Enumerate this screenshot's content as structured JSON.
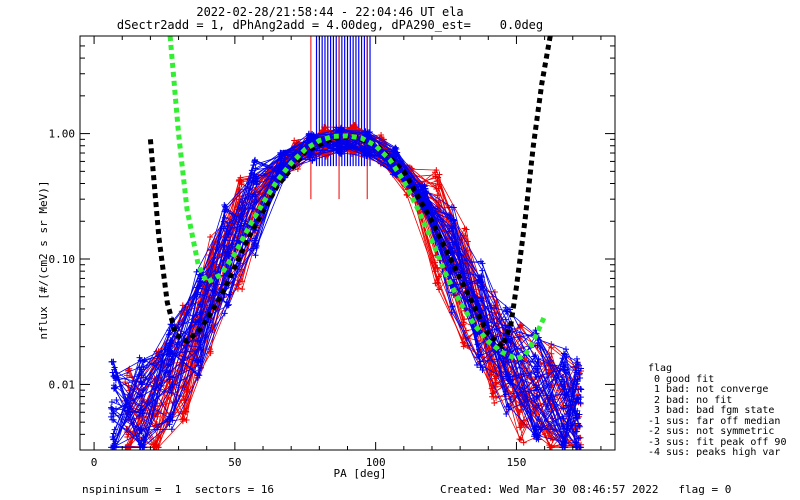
{
  "chart_data": {
    "type": "line",
    "title": "2022-02-28/21:58:44 - 22:04:46 UT ela",
    "subtitle": "dSectr2add = 1, dPhAng2add = 4.00deg, dPA290_est=    0.0deg",
    "xlabel": "PA [deg]",
    "ylabel": "nflux [#/(cm2 s sr MeV)]",
    "xlim": [
      -5,
      185
    ],
    "ylim": [
      0.003,
      6.0
    ],
    "yscale": "log",
    "x_ticks": [
      0,
      50,
      100,
      150
    ],
    "y_ticks": [
      0.01,
      0.1,
      1.0
    ],
    "y_tick_labels": [
      "0.01",
      "0.10",
      "1.00"
    ],
    "grid": false,
    "series": [
      {
        "color": "#000000",
        "style": "dashed",
        "x": [
          20,
          23,
          26,
          29,
          33,
          38,
          45,
          55,
          65,
          75,
          85,
          92,
          100,
          110,
          120,
          130,
          140,
          145,
          148,
          150,
          153,
          156,
          159,
          162
        ],
        "y": [
          0.9,
          0.15,
          0.045,
          0.025,
          0.022,
          0.028,
          0.05,
          0.15,
          0.38,
          0.72,
          0.92,
          0.95,
          0.82,
          0.5,
          0.2,
          0.07,
          0.025,
          0.02,
          0.03,
          0.06,
          0.2,
          0.8,
          2.5,
          6.0
        ]
      },
      {
        "color": "#33ee33",
        "style": "dashed",
        "x": [
          27,
          30,
          33,
          37,
          40,
          45,
          50,
          55,
          60,
          65,
          70,
          75,
          80,
          85,
          90,
          95,
          100,
          105,
          110,
          115,
          120,
          125,
          130,
          135,
          140,
          145,
          150,
          153,
          156,
          160
        ],
        "y": [
          6.0,
          1.0,
          0.25,
          0.09,
          0.065,
          0.075,
          0.11,
          0.18,
          0.28,
          0.42,
          0.58,
          0.75,
          0.88,
          0.95,
          0.96,
          0.92,
          0.8,
          0.62,
          0.42,
          0.25,
          0.14,
          0.075,
          0.045,
          0.03,
          0.022,
          0.018,
          0.016,
          0.017,
          0.022,
          0.035
        ]
      }
    ],
    "traces": {
      "blue": {
        "color": "#0000ee",
        "count": 45,
        "x": [
          7,
          17,
          27,
          37,
          47,
          57,
          67,
          77,
          87,
          97,
          107,
          117,
          127,
          137,
          147,
          157,
          167,
          172
        ],
        "y": [
          0.006,
          0.006,
          0.012,
          0.03,
          0.1,
          0.28,
          0.55,
          0.78,
          0.88,
          0.85,
          0.6,
          0.3,
          0.1,
          0.035,
          0.015,
          0.01,
          0.007,
          0.006
        ],
        "spread": 0.55
      },
      "red": {
        "color": "#ee0000",
        "count": 40,
        "x": [
          12,
          22,
          32,
          42,
          52,
          62,
          72,
          82,
          92,
          102,
          112,
          122,
          132,
          142,
          152,
          162,
          172
        ],
        "y": [
          0.005,
          0.007,
          0.015,
          0.05,
          0.17,
          0.4,
          0.68,
          0.86,
          0.9,
          0.75,
          0.42,
          0.17,
          0.06,
          0.02,
          0.01,
          0.007,
          0.005
        ],
        "spread": 0.6
      },
      "error_bars": {
        "blue_x": [
          79,
          80,
          81,
          82,
          83,
          84,
          85,
          86,
          87,
          88,
          89,
          90,
          91,
          92,
          93,
          94,
          95,
          96,
          97,
          98
        ],
        "red_x": [
          77,
          87,
          97
        ]
      }
    }
  },
  "legend": {
    "title": "flag",
    "items": [
      " 0 good fit",
      " 1 bad: not converge",
      " 2 bad: no fit",
      " 3 bad: bad fgm state",
      "-1 sus: far off median",
      "-2 sus: not symmetric",
      "-3 sus: fit peak off 90",
      "-4 sus: peaks high var"
    ]
  },
  "footer": {
    "left": "nspininsum =  1  sectors = 16",
    "right": "Created: Wed Mar 30 08:46:57 2022   flag = 0"
  }
}
